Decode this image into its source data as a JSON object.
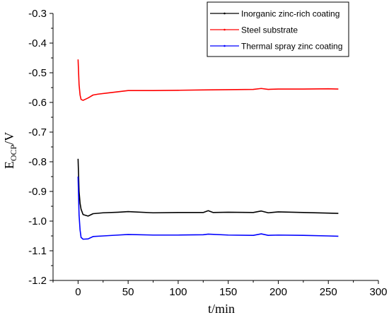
{
  "chart_data": {
    "type": "line",
    "xlabel": "t/min",
    "ylabel_main": "E",
    "ylabel_sub": "OCP",
    "ylabel_suffix": "/V",
    "xlim": [
      -25,
      300
    ],
    "ylim": [
      -1.2,
      -0.3
    ],
    "xticks": [
      0,
      50,
      100,
      150,
      200,
      250,
      300
    ],
    "yticks": [
      -1.2,
      -1.1,
      -1.0,
      -0.9,
      -0.8,
      -0.7,
      -0.6,
      -0.5,
      -0.4,
      -0.3
    ],
    "ytick_labels": [
      "-1.2",
      "-1.1",
      "-1.0",
      "-0.9",
      "-0.8",
      "-0.7",
      "-0.6",
      "-0.5",
      "-0.4",
      "-0.3"
    ],
    "grid": false,
    "legend_position": "top-right",
    "series": [
      {
        "name": "Inorganic zinc-rich coating",
        "color": "#000000",
        "points": [
          [
            0,
            -0.79
          ],
          [
            1,
            -0.9
          ],
          [
            2,
            -0.94
          ],
          [
            3,
            -0.96
          ],
          [
            5,
            -0.978
          ],
          [
            10,
            -0.983
          ],
          [
            15,
            -0.975
          ],
          [
            25,
            -0.972
          ],
          [
            40,
            -0.97
          ],
          [
            50,
            -0.968
          ],
          [
            75,
            -0.972
          ],
          [
            100,
            -0.971
          ],
          [
            125,
            -0.971
          ],
          [
            130,
            -0.965
          ],
          [
            135,
            -0.971
          ],
          [
            150,
            -0.97
          ],
          [
            175,
            -0.971
          ],
          [
            183,
            -0.966
          ],
          [
            190,
            -0.972
          ],
          [
            200,
            -0.969
          ],
          [
            225,
            -0.971
          ],
          [
            250,
            -0.973
          ],
          [
            260,
            -0.974
          ]
        ]
      },
      {
        "name": "Steel substrate",
        "color": "#ff0000",
        "points": [
          [
            0,
            -0.455
          ],
          [
            1,
            -0.54
          ],
          [
            2,
            -0.575
          ],
          [
            3,
            -0.59
          ],
          [
            5,
            -0.593
          ],
          [
            10,
            -0.585
          ],
          [
            15,
            -0.575
          ],
          [
            20,
            -0.572
          ],
          [
            30,
            -0.568
          ],
          [
            50,
            -0.56
          ],
          [
            75,
            -0.56
          ],
          [
            100,
            -0.559
          ],
          [
            125,
            -0.558
          ],
          [
            150,
            -0.557
          ],
          [
            175,
            -0.556
          ],
          [
            183,
            -0.553
          ],
          [
            190,
            -0.556
          ],
          [
            200,
            -0.555
          ],
          [
            225,
            -0.555
          ],
          [
            250,
            -0.554
          ],
          [
            260,
            -0.555
          ]
        ]
      },
      {
        "name": "Thermal spray zinc coating",
        "color": "#0000ff",
        "points": [
          [
            0,
            -0.85
          ],
          [
            1,
            -0.98
          ],
          [
            2,
            -1.03
          ],
          [
            3,
            -1.055
          ],
          [
            5,
            -1.061
          ],
          [
            10,
            -1.06
          ],
          [
            15,
            -1.052
          ],
          [
            25,
            -1.05
          ],
          [
            40,
            -1.047
          ],
          [
            50,
            -1.045
          ],
          [
            75,
            -1.047
          ],
          [
            100,
            -1.047
          ],
          [
            125,
            -1.046
          ],
          [
            130,
            -1.044
          ],
          [
            150,
            -1.047
          ],
          [
            175,
            -1.048
          ],
          [
            183,
            -1.043
          ],
          [
            190,
            -1.048
          ],
          [
            200,
            -1.047
          ],
          [
            225,
            -1.048
          ],
          [
            250,
            -1.05
          ],
          [
            260,
            -1.051
          ]
        ]
      }
    ]
  }
}
